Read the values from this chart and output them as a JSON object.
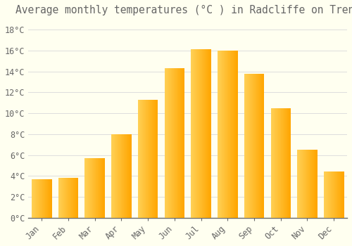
{
  "title": "Average monthly temperatures (°C ) in Radcliffe on Trent",
  "months": [
    "Jan",
    "Feb",
    "Mar",
    "Apr",
    "May",
    "Jun",
    "Jul",
    "Aug",
    "Sep",
    "Oct",
    "Nov",
    "Dec"
  ],
  "temperatures": [
    3.7,
    3.8,
    5.7,
    8.0,
    11.3,
    14.3,
    16.1,
    16.0,
    13.8,
    10.5,
    6.5,
    4.4
  ],
  "bar_color_left": "#FFD055",
  "bar_color_right": "#FFA500",
  "background_color": "#FFFFF0",
  "grid_color": "#DDDDDD",
  "ytick_labels": [
    "0°C",
    "2°C",
    "4°C",
    "6°C",
    "8°C",
    "10°C",
    "12°C",
    "14°C",
    "16°C",
    "18°C"
  ],
  "ytick_values": [
    0,
    2,
    4,
    6,
    8,
    10,
    12,
    14,
    16,
    18
  ],
  "ylim": [
    0,
    19
  ],
  "title_fontsize": 10.5,
  "tick_fontsize": 8.5,
  "font_color": "#666666",
  "bar_width": 0.75,
  "gradient_steps": 50
}
